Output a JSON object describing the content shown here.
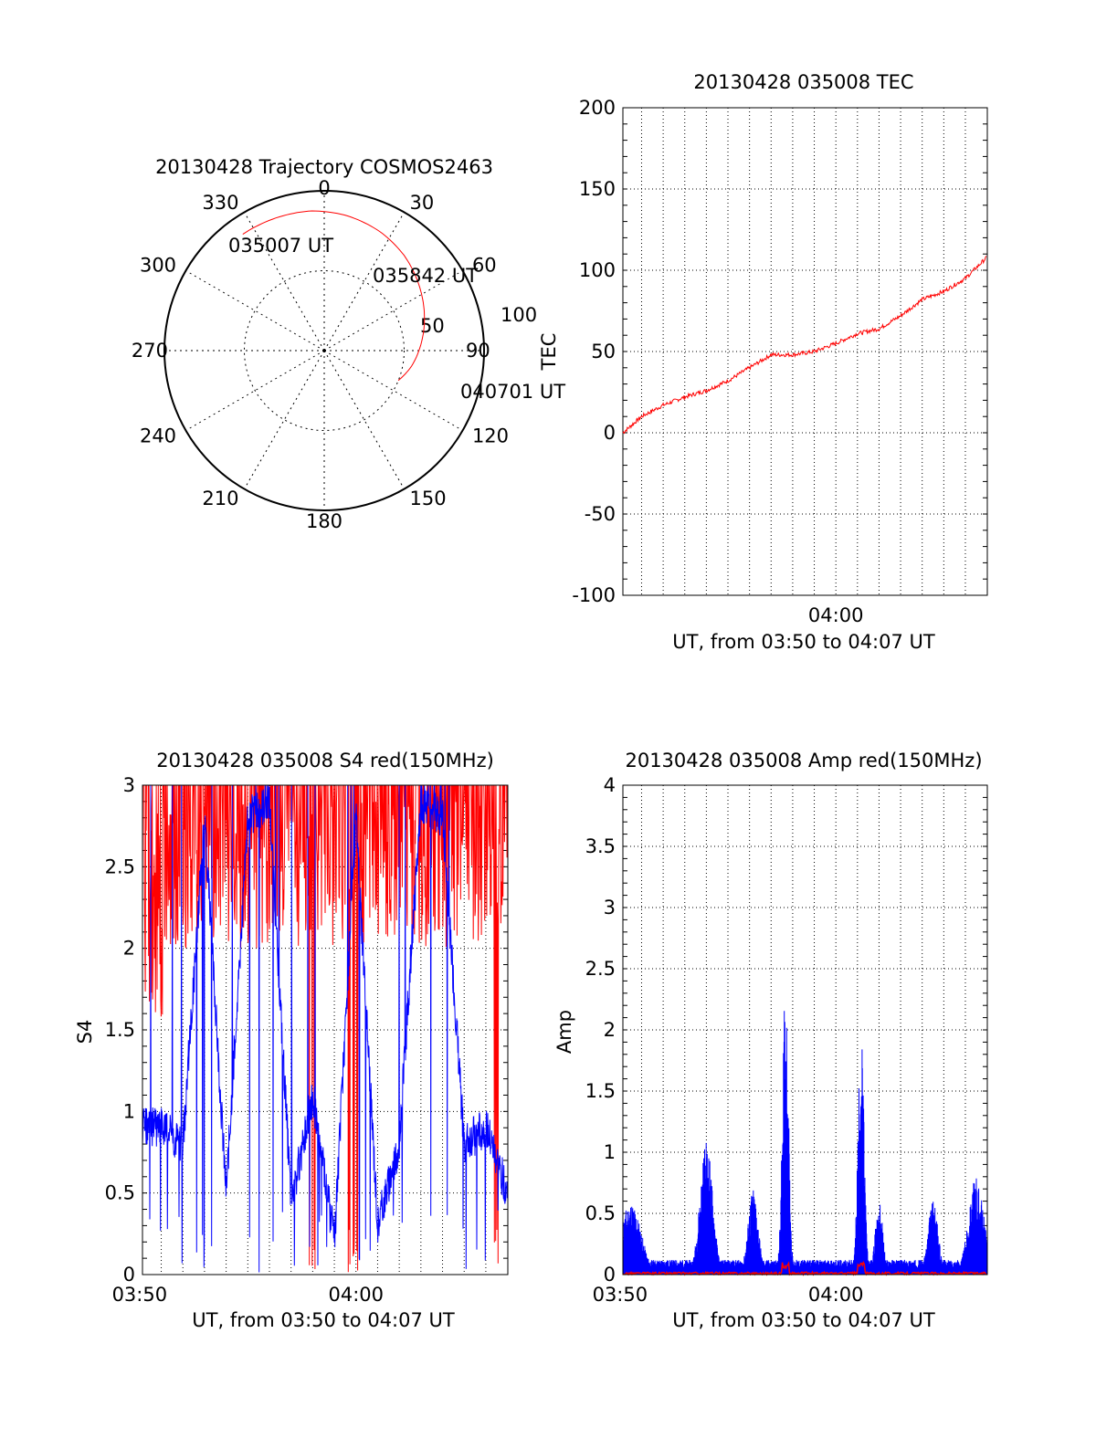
{
  "colors": {
    "red": "#ff0000",
    "blue": "#0000ff",
    "axis": "#000000",
    "grid": "#000000"
  },
  "chart_data": [
    {
      "type": "polar",
      "title": "20130428 Trajectory COSMOS2463",
      "azimuth_labels": [
        "0",
        "30",
        "60",
        "90",
        "120",
        "150",
        "180",
        "210",
        "240",
        "270",
        "300",
        "330"
      ],
      "radial_labels": [
        "50",
        "100"
      ],
      "grid": true,
      "series": [
        {
          "color": "red",
          "azimuth_elevation": [
            [
              -35,
              10
            ],
            [
              -20,
              10.5
            ],
            [
              -5,
              11
            ],
            [
              10,
              13
            ],
            [
              25,
              16
            ],
            [
              40,
              20
            ],
            [
              55,
              25
            ],
            [
              70,
              30
            ],
            [
              85,
              35
            ],
            [
              100,
              40
            ],
            [
              112,
              45
            ]
          ]
        }
      ],
      "annotations": [
        {
          "text": "035007 UT",
          "az": -35,
          "el": 10
        },
        {
          "text": "035842 UT",
          "az": 35,
          "el": 19
        },
        {
          "text": "040701 UT",
          "az": 112,
          "el": 45
        }
      ]
    },
    {
      "type": "line",
      "title": "20130428 035008 TEC",
      "xlabel": "UT, from 03:50 to 04:07 UT",
      "ylabel": "TEC",
      "xlim": [
        "03:50:08",
        "04:07:01"
      ],
      "ylim": [
        -100,
        200
      ],
      "yticks": [
        "200",
        "150",
        "100",
        "50",
        "0",
        "-50",
        "-100"
      ],
      "xticks": [
        "04:00"
      ],
      "grid": true,
      "series": [
        {
          "color": "red",
          "x": [
            "03:50:08",
            "03:51:00",
            "03:52:00",
            "03:53:00",
            "03:54:00",
            "03:55:00",
            "03:56:00",
            "03:57:00",
            "03:58:00",
            "03:59:00",
            "04:00:00",
            "04:01:00",
            "04:02:00",
            "04:03:00",
            "04:04:00",
            "04:05:00",
            "04:06:00",
            "04:07:00"
          ],
          "y": [
            0,
            10,
            17,
            22,
            26,
            32,
            40,
            48,
            48,
            50,
            55,
            61,
            64,
            72,
            82,
            87,
            95,
            108
          ]
        }
      ]
    },
    {
      "type": "line",
      "title": "20130428 035008 S4 red(150MHz)",
      "xlabel": "UT, from 03:50 to 04:07 UT",
      "ylabel": "S4",
      "xlim": [
        "03:50:08",
        "04:07:01"
      ],
      "ylim": [
        0,
        3
      ],
      "yticks": [
        "3",
        "2.5",
        "2",
        "1.5",
        "1",
        "0.5",
        "0"
      ],
      "xticks": [
        "03:50",
        "04:00"
      ],
      "grid": true,
      "series": [
        {
          "color": "red",
          "note": "dense noisy trace, mostly 2.0–3.0"
        },
        {
          "color": "blue",
          "x": [
            "03:50:08",
            "03:51:00",
            "03:52:00",
            "03:53:00",
            "03:54:00",
            "03:55:00",
            "03:56:00",
            "03:57:00",
            "03:58:00",
            "03:59:00",
            "04:00:00",
            "04:01:00",
            "04:02:00",
            "04:03:00",
            "04:04:00",
            "04:05:00",
            "04:06:00",
            "04:07:00"
          ],
          "y": [
            0.9,
            0.9,
            0.8,
            2.8,
            0.5,
            2.8,
            2.9,
            0.45,
            1.1,
            0.2,
            2.8,
            0.3,
            0.8,
            2.9,
            2.8,
            0.8,
            0.9,
            0.5
          ]
        }
      ]
    },
    {
      "type": "line",
      "title": "20130428 035008 Amp red(150MHz)",
      "xlabel": "UT, from 03:50 to 04:07 UT",
      "ylabel": "Amp",
      "xlim": [
        "03:50:08",
        "04:07:01"
      ],
      "ylim": [
        0,
        4
      ],
      "yticks": [
        "4",
        "3.5",
        "3",
        "2.5",
        "2",
        "1.5",
        "1",
        "0.5",
        "0"
      ],
      "xticks": [
        "03:50",
        "04:00"
      ],
      "grid": true,
      "series": [
        {
          "color": "blue",
          "peaks": [
            {
              "x": "03:50:30",
              "y": 0.6
            },
            {
              "x": "03:54:00",
              "y": 1.1
            },
            {
              "x": "03:56:10",
              "y": 0.7
            },
            {
              "x": "03:57:40",
              "y": 2.35
            },
            {
              "x": "04:01:10",
              "y": 2.0
            },
            {
              "x": "04:02:00",
              "y": 0.6
            },
            {
              "x": "04:04:30",
              "y": 0.6
            },
            {
              "x": "04:06:30",
              "y": 0.8
            }
          ]
        },
        {
          "color": "red",
          "note": "near zero, small bursts near 03:58 and 04:01"
        }
      ]
    }
  ]
}
